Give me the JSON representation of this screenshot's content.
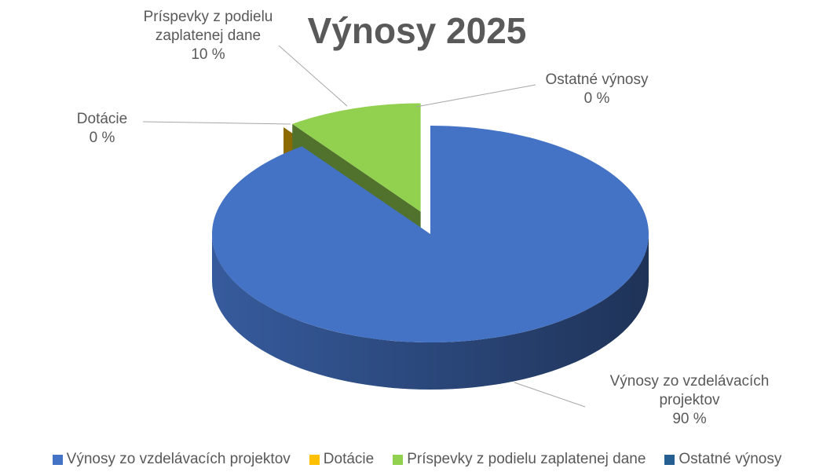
{
  "chart_data": {
    "type": "pie",
    "title": "Výnosy 2025",
    "categories": [
      "Výnosy zo vzdelávacích projektov",
      "Dotácie",
      "Príspevky z podielu zaplatenej dane",
      "Ostatné výnosy"
    ],
    "values": [
      90,
      0,
      10,
      0
    ],
    "value_labels": [
      "90 %",
      "0 %",
      "10 %",
      "0 %"
    ],
    "colors": [
      "#4472c4",
      "#ffc000",
      "#92d050",
      "#255e91"
    ],
    "legend": "bottom"
  }
}
